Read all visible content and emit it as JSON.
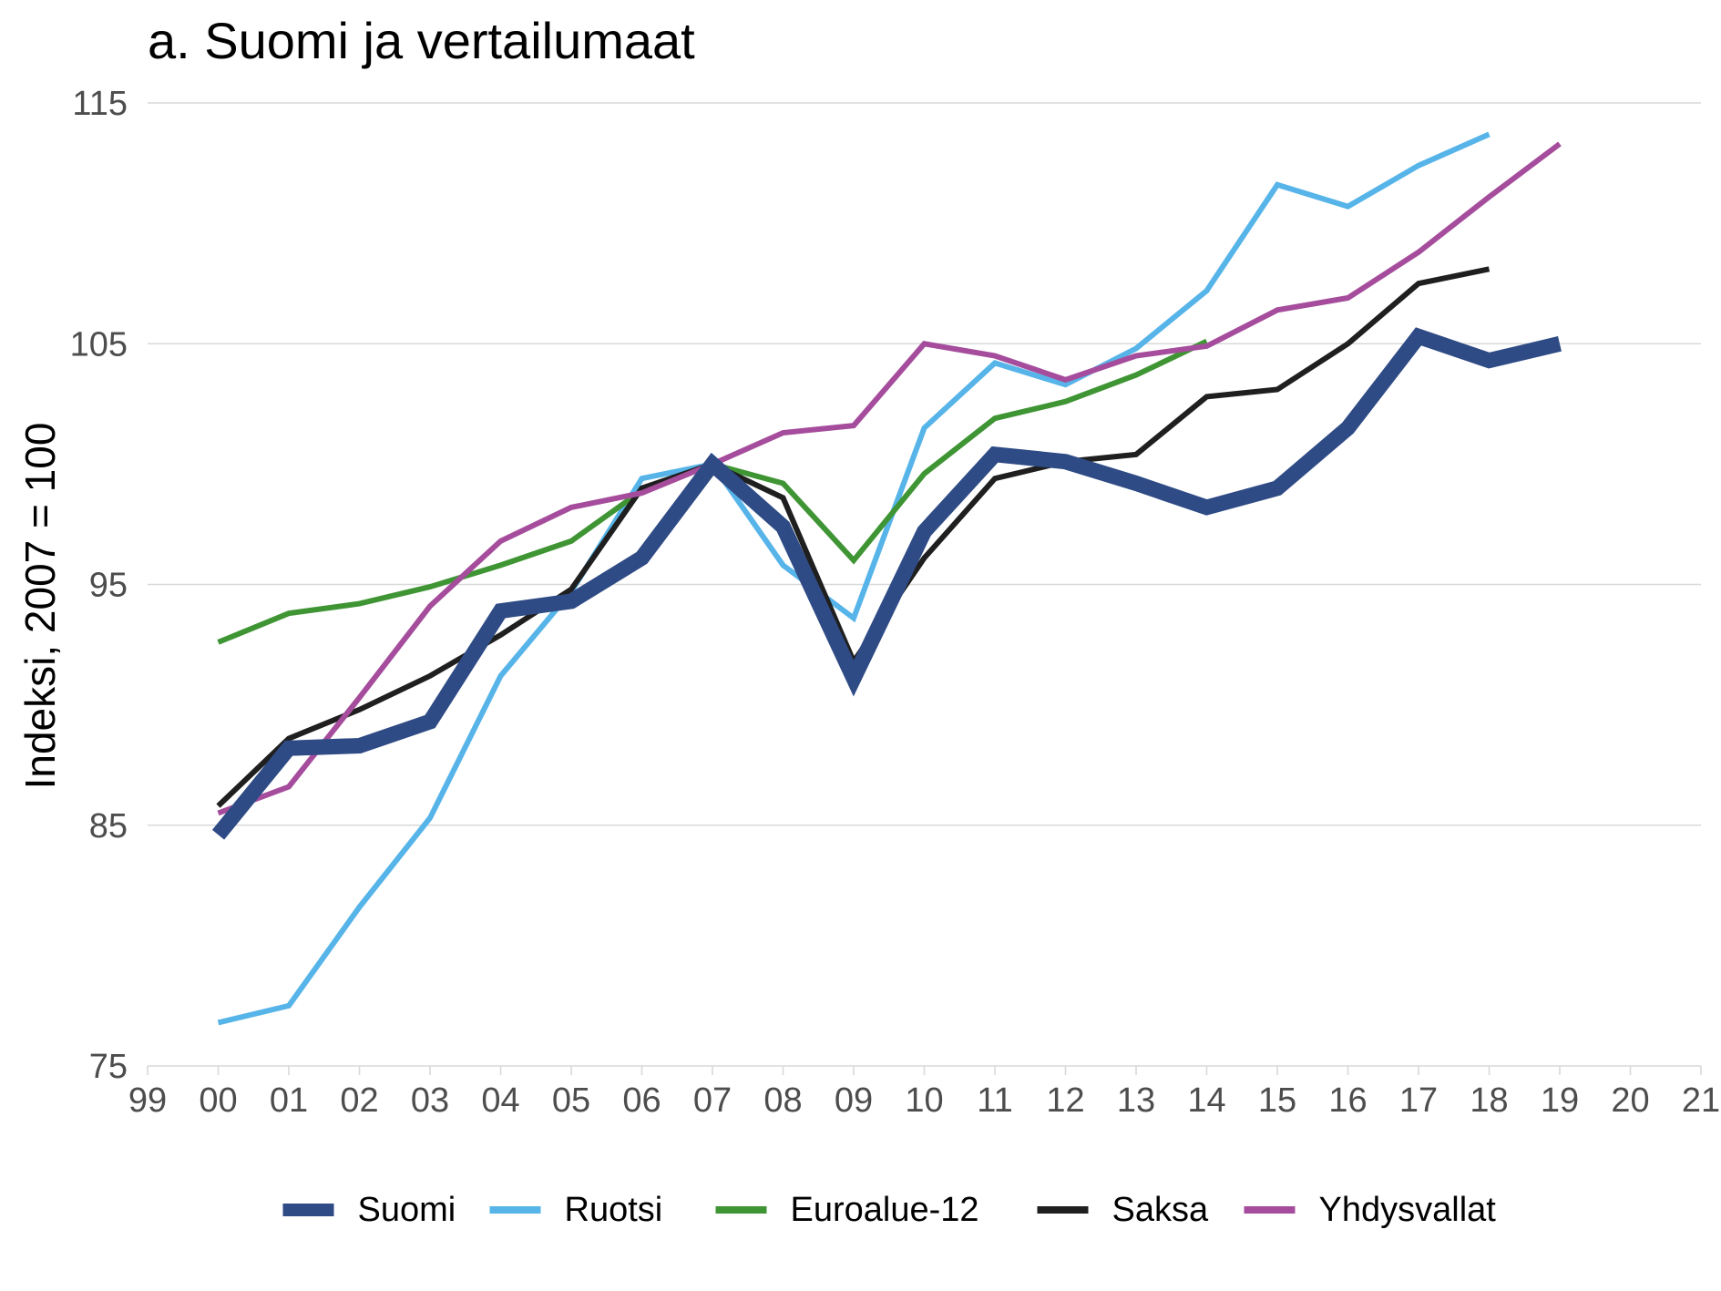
{
  "chart_data": {
    "type": "line",
    "title": "a. Suomi ja vertailumaat",
    "xlabel": "",
    "ylabel": "Indeksi, 2007 = 100",
    "ylim": [
      75,
      115
    ],
    "yticks": [
      "75",
      "85",
      "95",
      "105",
      "115"
    ],
    "xlim": [
      1999,
      2021
    ],
    "xticks": [
      "99",
      "00",
      "01",
      "02",
      "03",
      "04",
      "05",
      "06",
      "07",
      "08",
      "09",
      "10",
      "11",
      "12",
      "13",
      "14",
      "15",
      "16",
      "17",
      "18",
      "19",
      "20",
      "21"
    ],
    "grid": "horizontal",
    "legend_position": "bottom",
    "series": [
      {
        "name": "Ruotsi",
        "color": "#56B4E9",
        "x": [
          2000,
          2001,
          2002,
          2003,
          2004,
          2005,
          2006,
          2007,
          2008,
          2009,
          2010,
          2011,
          2012,
          2013,
          2014,
          2015,
          2016,
          2017,
          2018
        ],
        "values": [
          76.8,
          77.5,
          81.6,
          85.3,
          91.2,
          94.7,
          99.4,
          100,
          95.8,
          93.6,
          101.5,
          104.2,
          103.3,
          104.8,
          107.2,
          111.6,
          110.7,
          112.4,
          113.7
        ]
      },
      {
        "name": "Euroalue-12",
        "color": "#3F9534",
        "x": [
          2000,
          2001,
          2002,
          2003,
          2004,
          2005,
          2006,
          2007,
          2008,
          2009,
          2010,
          2011,
          2012,
          2013,
          2014
        ],
        "values": [
          92.6,
          93.8,
          94.2,
          94.9,
          95.8,
          96.8,
          98.9,
          100,
          99.2,
          96.0,
          99.6,
          101.9,
          102.6,
          103.7,
          105.1
        ]
      },
      {
        "name": "Saksa",
        "color": "#1f1f1f",
        "x": [
          2000,
          2001,
          2002,
          2003,
          2004,
          2005,
          2006,
          2007,
          2008,
          2009,
          2010,
          2011,
          2012,
          2013,
          2014,
          2015,
          2016,
          2017,
          2018
        ],
        "values": [
          85.8,
          88.6,
          89.8,
          91.2,
          92.9,
          94.8,
          99.0,
          100,
          98.6,
          91.8,
          96.1,
          99.4,
          100.1,
          100.4,
          102.8,
          103.1,
          105.0,
          107.5,
          108.1
        ]
      },
      {
        "name": "Yhdysvallat",
        "color": "#A54D9C",
        "x": [
          2000,
          2001,
          2002,
          2003,
          2004,
          2005,
          2006,
          2007,
          2008,
          2009,
          2010,
          2011,
          2012,
          2013,
          2014,
          2015,
          2016,
          2017,
          2018,
          2019
        ],
        "values": [
          85.5,
          86.6,
          90.3,
          94.1,
          96.8,
          98.2,
          98.8,
          100,
          101.3,
          101.6,
          105.0,
          104.5,
          103.5,
          104.5,
          104.9,
          106.4,
          106.9,
          108.8,
          111.1,
          113.3
        ]
      },
      {
        "name": "Suomi",
        "color": "#2F4B85",
        "x": [
          2000,
          2001,
          2002,
          2003,
          2004,
          2005,
          2006,
          2007,
          2008,
          2009,
          2010,
          2011,
          2012,
          2013,
          2014,
          2015,
          2016,
          2017,
          2018,
          2019
        ],
        "values": [
          84.6,
          88.2,
          88.3,
          89.3,
          93.9,
          94.3,
          96.1,
          100,
          97.4,
          91.1,
          97.2,
          100.4,
          100.1,
          99.2,
          98.2,
          99.0,
          101.5,
          105.3,
          104.3,
          105.0
        ]
      }
    ],
    "legend": [
      {
        "name": "Suomi",
        "color": "#2F4B85"
      },
      {
        "name": "Ruotsi",
        "color": "#56B4E9"
      },
      {
        "name": "Euroalue-12",
        "color": "#3F9534"
      },
      {
        "name": "Saksa",
        "color": "#1f1f1f"
      },
      {
        "name": "Yhdysvallat",
        "color": "#A54D9C"
      }
    ]
  }
}
